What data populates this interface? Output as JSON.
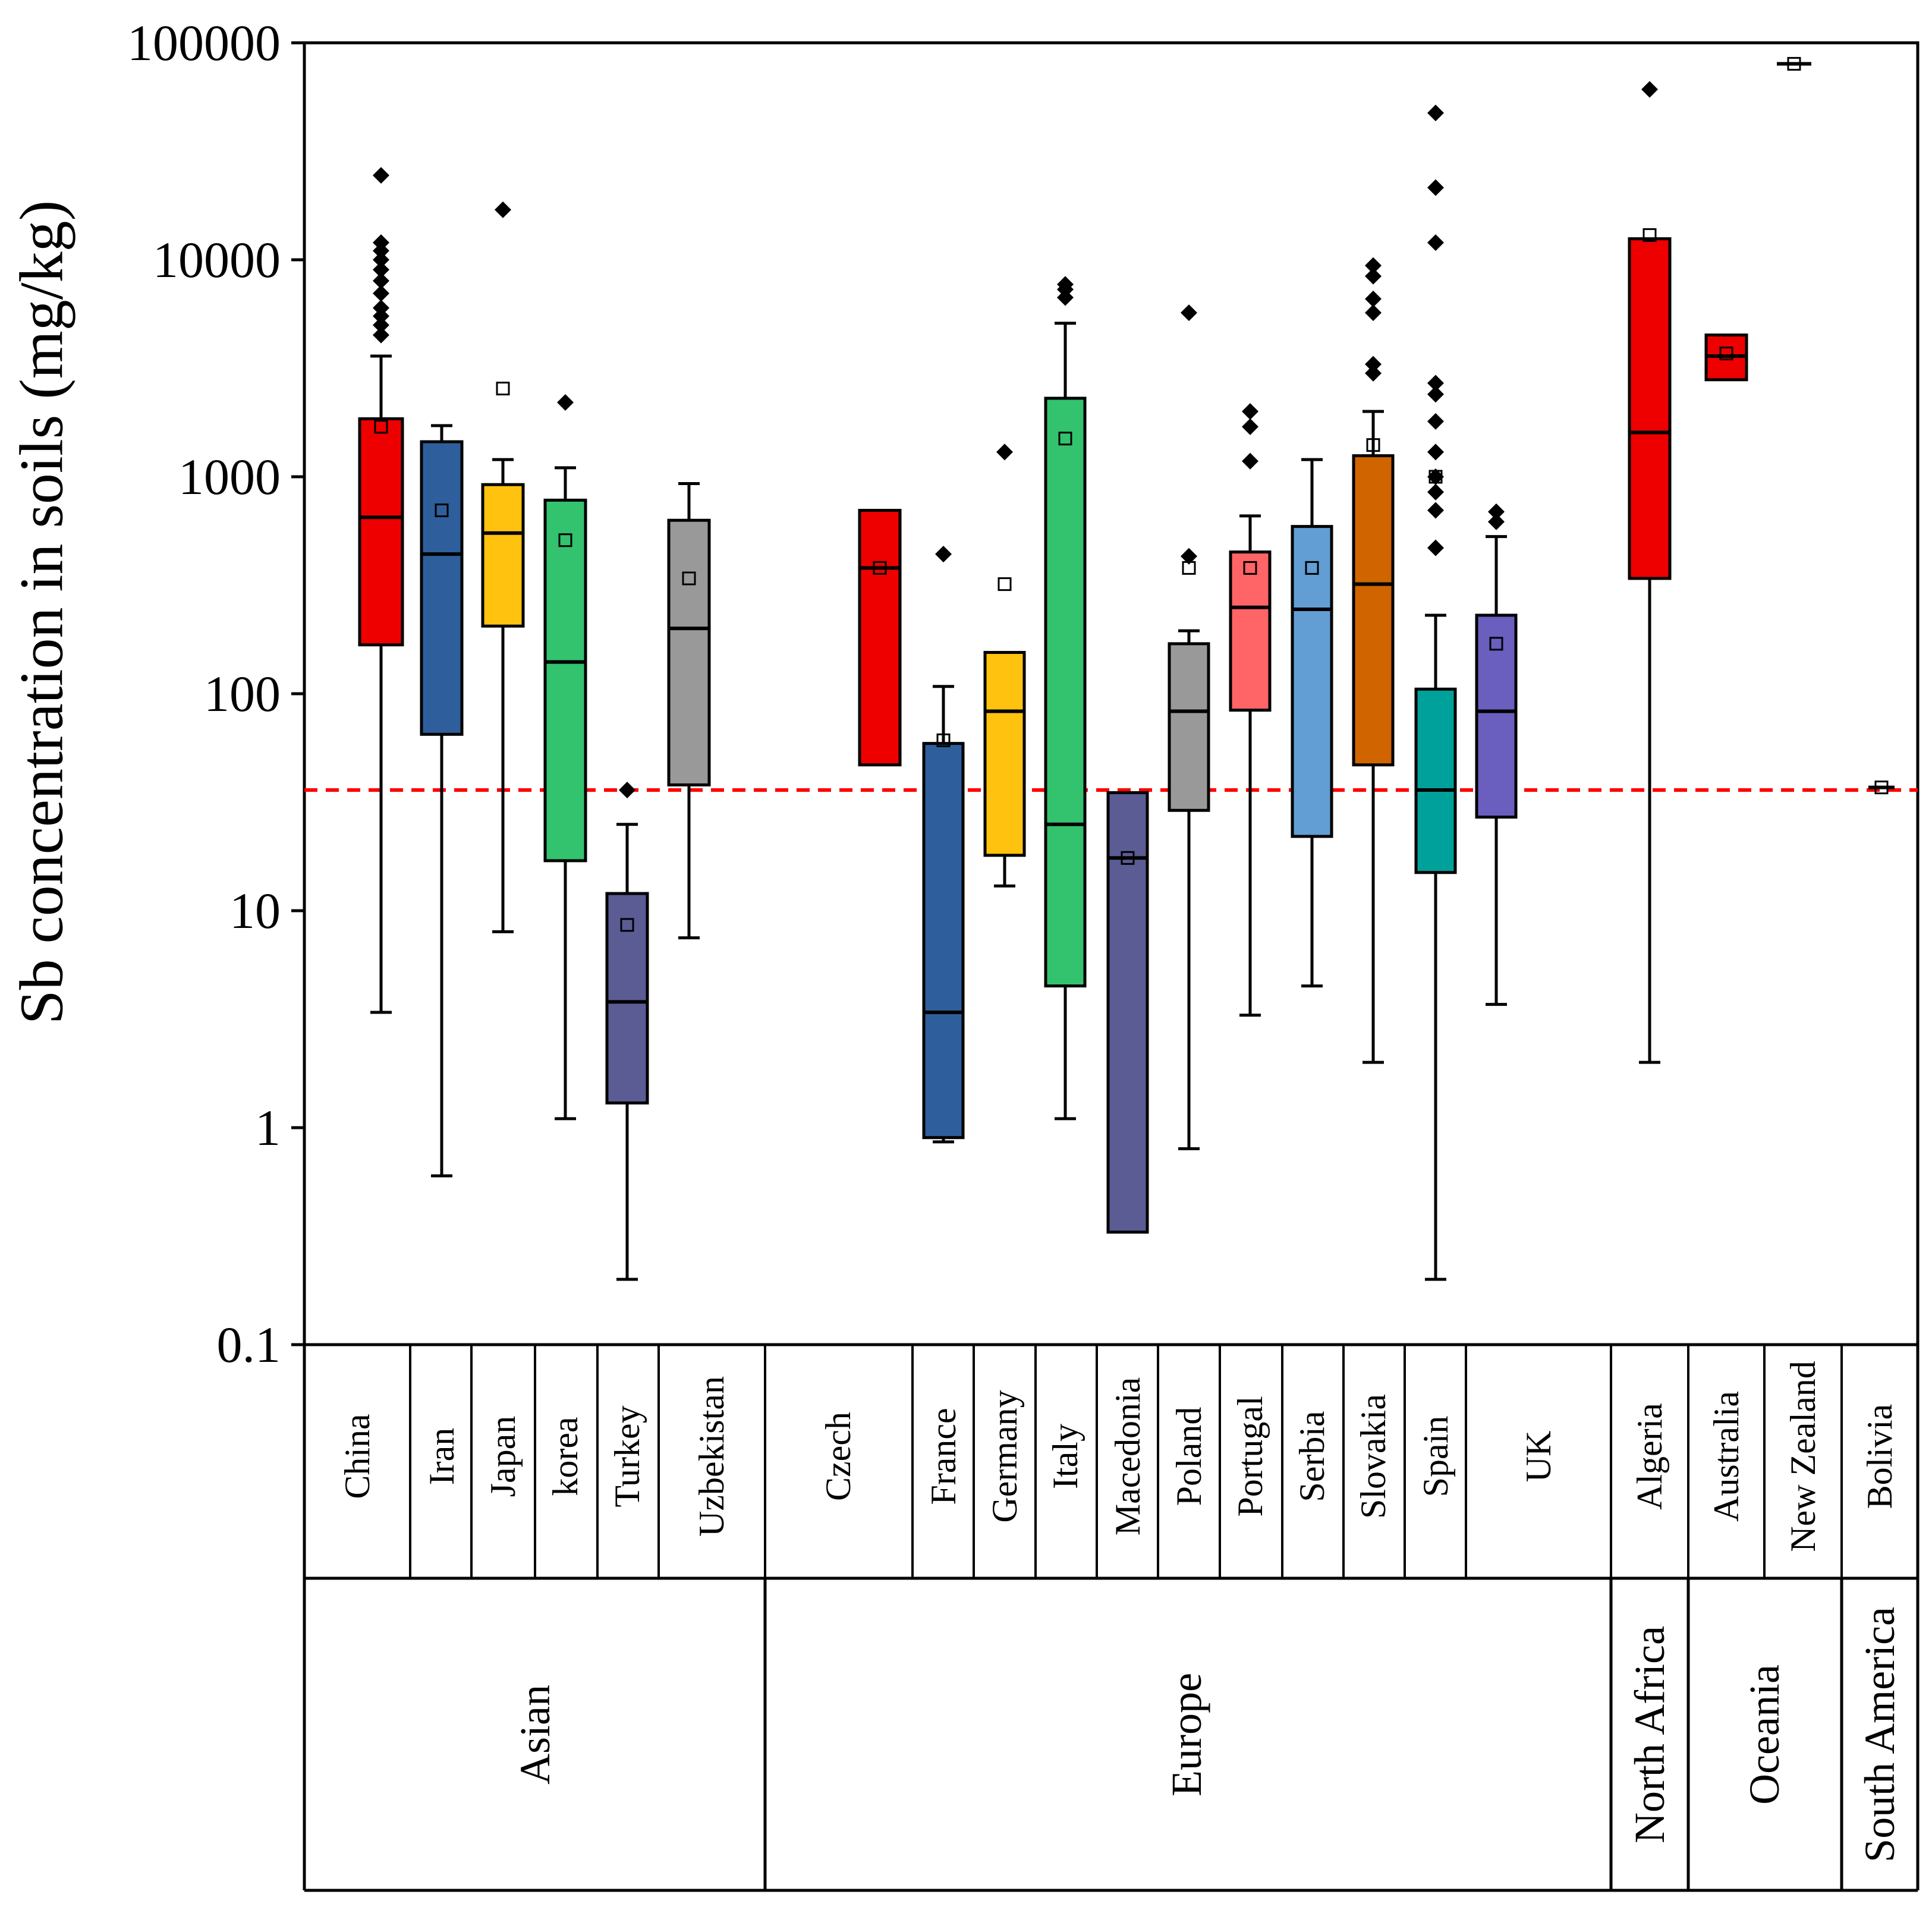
{
  "chart_data": {
    "type": "box",
    "ylabel": "Sb concentration in soils (mg/kg)",
    "yscale": "log",
    "ylim": [
      0.1,
      100000
    ],
    "yticks": [
      {
        "value": 0.1,
        "label": "0.1"
      },
      {
        "value": 1,
        "label": "1"
      },
      {
        "value": 10,
        "label": "10"
      },
      {
        "value": 100,
        "label": "100"
      },
      {
        "value": 1000,
        "label": "1000"
      },
      {
        "value": 10000,
        "label": "10000"
      },
      {
        "value": 100000,
        "label": "100000"
      }
    ],
    "reference_line": {
      "value": 36,
      "color": "#ff0000",
      "style": "dashed"
    },
    "regions": [
      {
        "name": "Asian",
        "countries": [
          "China",
          "Iran",
          "Japan",
          "korea",
          "Turkey",
          "Uzbekistan"
        ]
      },
      {
        "name": "Europe",
        "countries": [
          "Czech",
          "France",
          "Germany",
          "Italy",
          "Macedonia",
          "Poland",
          "Portugal",
          "Serbia",
          "Slovakia",
          "Spain",
          "UK"
        ]
      },
      {
        "name": "North Africa",
        "countries": [
          "Algeria"
        ]
      },
      {
        "name": "Oceania",
        "countries": [
          "Australia",
          "New Zealand"
        ]
      },
      {
        "name": "South America",
        "countries": [
          "Bolivia"
        ]
      }
    ],
    "boxes": [
      {
        "name": "China",
        "color": "#ee0000",
        "q1": 168,
        "median": 650,
        "q3": 1850,
        "whisker_low": 3.4,
        "whisker_high": 3600,
        "mean": 1700,
        "outliers": [
          4500,
          5000,
          5500,
          6000,
          7000,
          8000,
          9000,
          10000,
          11000,
          12000,
          24500
        ]
      },
      {
        "name": "Iran",
        "color": "#2e5f9c",
        "q1": 65,
        "median": 440,
        "q3": 1450,
        "whisker_low": 0.6,
        "whisker_high": 1720,
        "mean": 700,
        "outliers": []
      },
      {
        "name": "Japan",
        "color": "#ffc20e",
        "q1": 205,
        "median": 550,
        "q3": 920,
        "whisker_low": 8,
        "whisker_high": 1200,
        "mean": 2550,
        "outliers": [
          17000
        ]
      },
      {
        "name": "korea",
        "color": "#33c36e",
        "q1": 17,
        "median": 140,
        "q3": 780,
        "whisker_low": 1.1,
        "whisker_high": 1100,
        "mean": 510,
        "outliers": [
          2200
        ]
      },
      {
        "name": "Turkey",
        "color": "#5b5c94",
        "q1": 1.3,
        "median": 3.8,
        "q3": 12,
        "whisker_low": 0.2,
        "whisker_high": 25,
        "mean": 8.6,
        "outliers": [
          36
        ]
      },
      {
        "name": "Uzbekistan",
        "color": "#999999",
        "q1": 38,
        "median": 200,
        "q3": 630,
        "whisker_low": 7.5,
        "whisker_high": 930,
        "mean": 340,
        "outliers": []
      },
      {
        "name": "Czech",
        "color": "#ee0000",
        "q1": 47,
        "median": 380,
        "q3": 700,
        "whisker_low": 47,
        "whisker_high": 700,
        "mean": 380,
        "outliers": []
      },
      {
        "name": "France",
        "color": "#2e5f9c",
        "q1": 0.9,
        "median": 3.4,
        "q3": 59,
        "whisker_low": 0.86,
        "whisker_high": 108,
        "mean": 61,
        "outliers": [
          440
        ]
      },
      {
        "name": "Germany",
        "color": "#ffc20e",
        "q1": 18,
        "median": 83,
        "q3": 155,
        "whisker_low": 13,
        "whisker_high": 155,
        "mean": 320,
        "outliers": [
          1300
        ]
      },
      {
        "name": "Italy",
        "color": "#33c36e",
        "q1": 4.5,
        "median": 25,
        "q3": 2300,
        "whisker_low": 1.1,
        "whisker_high": 5100,
        "mean": 1500,
        "outliers": [
          6700,
          7300,
          7700
        ]
      },
      {
        "name": "Macedonia",
        "color": "#5b5c94",
        "q1": 0.33,
        "median": 17.5,
        "q3": 35,
        "whisker_low": 0.33,
        "whisker_high": 35,
        "mean": 17.5,
        "outliers": []
      },
      {
        "name": "Poland",
        "color": "#999999",
        "q1": 29,
        "median": 83,
        "q3": 170,
        "whisker_low": 0.8,
        "whisker_high": 195,
        "mean": 380,
        "outliers": [
          430,
          5700
        ]
      },
      {
        "name": "Portugal",
        "color": "#ff6467",
        "q1": 84,
        "median": 250,
        "q3": 450,
        "whisker_low": 3.3,
        "whisker_high": 660,
        "mean": 380,
        "outliers": [
          1180,
          1700,
          2000
        ]
      },
      {
        "name": "Serbia",
        "color": "#629ed4",
        "q1": 22,
        "median": 245,
        "q3": 590,
        "whisker_low": 4.5,
        "whisker_high": 1200,
        "mean": 380,
        "outliers": []
      },
      {
        "name": "Slovakia",
        "color": "#d06500",
        "q1": 47,
        "median": 320,
        "q3": 1250,
        "whisker_low": 2,
        "whisker_high": 2000,
        "mean": 1400,
        "outliers": [
          3000,
          3300,
          5700,
          6600,
          8400,
          9400
        ]
      },
      {
        "name": "Spain",
        "color": "#00a19a",
        "q1": 15,
        "median": 36,
        "q3": 105,
        "whisker_low": 0.2,
        "whisker_high": 230,
        "mean": 1000,
        "outliers": [
          470,
          700,
          850,
          1000,
          1300,
          1800,
          2400,
          2700,
          12000,
          21500,
          47500
        ]
      },
      {
        "name": "UK",
        "color": "#6a5fbf",
        "q1": 27,
        "median": 83,
        "q3": 230,
        "whisker_low": 3.7,
        "whisker_high": 530,
        "mean": 170,
        "outliers": [
          620,
          690
        ]
      },
      {
        "name": "Algeria",
        "color": "#ee0000",
        "q1": 340,
        "median": 1600,
        "q3": 12500,
        "whisker_low": 2,
        "whisker_high": 12500,
        "mean": 13000,
        "outliers": [
          61000
        ]
      },
      {
        "name": "Australia",
        "color": "#ee0000",
        "q1": 2800,
        "median": 3600,
        "q3": 4500,
        "whisker_low": 2800,
        "whisker_high": 4500,
        "mean": 3700,
        "outliers": []
      },
      {
        "name": "New Zealand",
        "color": "#ee0000",
        "q1": 80000,
        "median": 80000,
        "q3": 80000,
        "whisker_low": 80000,
        "whisker_high": 80000,
        "mean": 80000,
        "outliers": []
      },
      {
        "name": "Bolivia",
        "color": "#ee0000",
        "q1": 37,
        "median": 37,
        "q3": 37,
        "whisker_low": 37,
        "whisker_high": 37,
        "mean": 37,
        "outliers": []
      }
    ]
  }
}
